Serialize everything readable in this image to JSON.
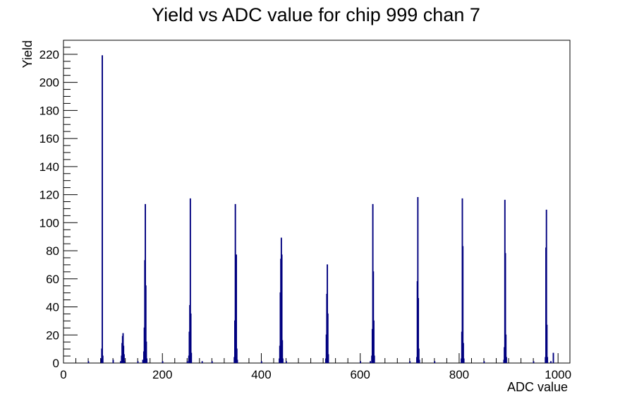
{
  "chart_data": {
    "type": "histogram",
    "title": "Yield vs ADC value for chip 999 chan 7",
    "xlabel": "ADC value",
    "ylabel": "Yield",
    "xlim": [
      0,
      1024
    ],
    "ylim": [
      0,
      230
    ],
    "x_ticks": [
      0,
      200,
      400,
      600,
      800,
      1000
    ],
    "y_ticks": [
      0,
      20,
      40,
      60,
      80,
      100,
      120,
      140,
      160,
      180,
      200,
      220
    ],
    "line_color": "#00007f",
    "bins": [
      {
        "x": 50,
        "y": 1
      },
      {
        "x": 76,
        "y": 3
      },
      {
        "x": 77,
        "y": 10
      },
      {
        "x": 78,
        "y": 219
      },
      {
        "x": 79,
        "y": 5
      },
      {
        "x": 100,
        "y": 2
      },
      {
        "x": 115,
        "y": 1
      },
      {
        "x": 117,
        "y": 5
      },
      {
        "x": 118,
        "y": 14
      },
      {
        "x": 119,
        "y": 19
      },
      {
        "x": 120,
        "y": 21
      },
      {
        "x": 121,
        "y": 12
      },
      {
        "x": 122,
        "y": 6
      },
      {
        "x": 123,
        "y": 1
      },
      {
        "x": 150,
        "y": 1
      },
      {
        "x": 160,
        "y": 2
      },
      {
        "x": 162,
        "y": 8
      },
      {
        "x": 163,
        "y": 25
      },
      {
        "x": 164,
        "y": 73
      },
      {
        "x": 165,
        "y": 113
      },
      {
        "x": 166,
        "y": 55
      },
      {
        "x": 167,
        "y": 15
      },
      {
        "x": 168,
        "y": 3
      },
      {
        "x": 200,
        "y": 1
      },
      {
        "x": 250,
        "y": 1
      },
      {
        "x": 253,
        "y": 5
      },
      {
        "x": 254,
        "y": 22
      },
      {
        "x": 255,
        "y": 41
      },
      {
        "x": 256,
        "y": 117
      },
      {
        "x": 257,
        "y": 35
      },
      {
        "x": 258,
        "y": 7
      },
      {
        "x": 280,
        "y": 1
      },
      {
        "x": 300,
        "y": 1
      },
      {
        "x": 345,
        "y": 4
      },
      {
        "x": 346,
        "y": 30
      },
      {
        "x": 347,
        "y": 113
      },
      {
        "x": 348,
        "y": 49
      },
      {
        "x": 349,
        "y": 77
      },
      {
        "x": 350,
        "y": 10
      },
      {
        "x": 351,
        "y": 2
      },
      {
        "x": 400,
        "y": 1
      },
      {
        "x": 436,
        "y": 3
      },
      {
        "x": 437,
        "y": 12
      },
      {
        "x": 438,
        "y": 50
      },
      {
        "x": 439,
        "y": 74
      },
      {
        "x": 440,
        "y": 89
      },
      {
        "x": 441,
        "y": 77
      },
      {
        "x": 442,
        "y": 16
      },
      {
        "x": 443,
        "y": 3
      },
      {
        "x": 450,
        "y": 1
      },
      {
        "x": 530,
        "y": 3
      },
      {
        "x": 531,
        "y": 20
      },
      {
        "x": 532,
        "y": 49
      },
      {
        "x": 533,
        "y": 70
      },
      {
        "x": 534,
        "y": 35
      },
      {
        "x": 535,
        "y": 6
      },
      {
        "x": 600,
        "y": 1
      },
      {
        "x": 620,
        "y": 1
      },
      {
        "x": 623,
        "y": 5
      },
      {
        "x": 624,
        "y": 24
      },
      {
        "x": 625,
        "y": 113
      },
      {
        "x": 626,
        "y": 65
      },
      {
        "x": 627,
        "y": 30
      },
      {
        "x": 628,
        "y": 5
      },
      {
        "x": 700,
        "y": 1
      },
      {
        "x": 714,
        "y": 4
      },
      {
        "x": 715,
        "y": 58
      },
      {
        "x": 716,
        "y": 118
      },
      {
        "x": 717,
        "y": 46
      },
      {
        "x": 718,
        "y": 10
      },
      {
        "x": 719,
        "y": 2
      },
      {
        "x": 750,
        "y": 1
      },
      {
        "x": 804,
        "y": 3
      },
      {
        "x": 805,
        "y": 22
      },
      {
        "x": 806,
        "y": 117
      },
      {
        "x": 807,
        "y": 83
      },
      {
        "x": 808,
        "y": 14
      },
      {
        "x": 809,
        "y": 3
      },
      {
        "x": 850,
        "y": 1
      },
      {
        "x": 890,
        "y": 2
      },
      {
        "x": 891,
        "y": 11
      },
      {
        "x": 892,
        "y": 116
      },
      {
        "x": 893,
        "y": 78
      },
      {
        "x": 894,
        "y": 20
      },
      {
        "x": 895,
        "y": 4
      },
      {
        "x": 950,
        "y": 1
      },
      {
        "x": 974,
        "y": 4
      },
      {
        "x": 975,
        "y": 82
      },
      {
        "x": 976,
        "y": 109
      },
      {
        "x": 977,
        "y": 27
      },
      {
        "x": 978,
        "y": 4
      },
      {
        "x": 985,
        "y": 1
      },
      {
        "x": 990,
        "y": 7
      }
    ]
  }
}
